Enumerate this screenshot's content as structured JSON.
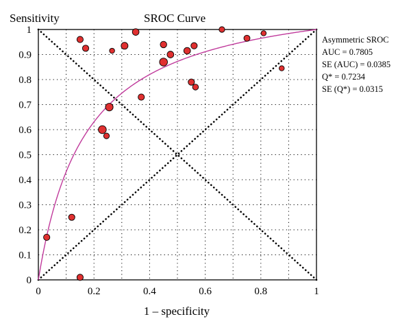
{
  "chart_data": {
    "type": "scatter",
    "title": "SROC Curve",
    "ylabel": "Sensitivity",
    "xlabel": "1 – specificity",
    "xlim": [
      0,
      1
    ],
    "ylim": [
      0,
      1
    ],
    "grid": true,
    "x_ticks": [
      "0",
      "0.2",
      "0.4",
      "0.6",
      "0.8",
      "1"
    ],
    "y_ticks": [
      "0",
      "0.1",
      "0.2",
      "0.3",
      "0.4",
      "0.5",
      "0.6",
      "0.7",
      "0.8",
      "0.9",
      "1"
    ],
    "colors": {
      "point": "#e03030",
      "curve": "#c0399b",
      "grid": "#000000"
    },
    "stats": [
      "Asymmetric SROC",
      "AUC = 0.7805",
      "SE (AUC) = 0.0385",
      "Q* = 0.7234",
      "SE (Q*) = 0.0315"
    ],
    "points": [
      {
        "x": 0.03,
        "y": 0.17,
        "w": 1
      },
      {
        "x": 0.12,
        "y": 0.25,
        "w": 1
      },
      {
        "x": 0.15,
        "y": 0.96,
        "w": 1
      },
      {
        "x": 0.15,
        "y": 0.01,
        "w": 1
      },
      {
        "x": 0.17,
        "y": 0.925,
        "w": 1
      },
      {
        "x": 0.23,
        "y": 0.6,
        "w": 2
      },
      {
        "x": 0.245,
        "y": 0.575,
        "w": 0.7
      },
      {
        "x": 0.255,
        "y": 0.69,
        "w": 1.8
      },
      {
        "x": 0.265,
        "y": 0.915,
        "w": 0.5
      },
      {
        "x": 0.31,
        "y": 0.935,
        "w": 1.3
      },
      {
        "x": 0.35,
        "y": 0.99,
        "w": 1.2
      },
      {
        "x": 0.37,
        "y": 0.73,
        "w": 1
      },
      {
        "x": 0.45,
        "y": 0.87,
        "w": 2
      },
      {
        "x": 0.45,
        "y": 0.94,
        "w": 1.1
      },
      {
        "x": 0.475,
        "y": 0.9,
        "w": 1.2
      },
      {
        "x": 0.535,
        "y": 0.915,
        "w": 1.2
      },
      {
        "x": 0.55,
        "y": 0.79,
        "w": 1
      },
      {
        "x": 0.56,
        "y": 0.935,
        "w": 1
      },
      {
        "x": 0.565,
        "y": 0.77,
        "w": 0.8
      },
      {
        "x": 0.66,
        "y": 1.0,
        "w": 0.7
      },
      {
        "x": 0.75,
        "y": 0.965,
        "w": 0.9
      },
      {
        "x": 0.81,
        "y": 0.985,
        "w": 0.5
      },
      {
        "x": 0.875,
        "y": 0.845,
        "w": 0.5
      }
    ]
  }
}
